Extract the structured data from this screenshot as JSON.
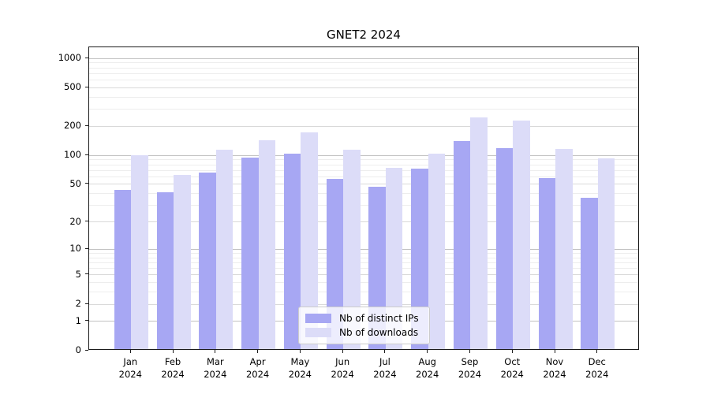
{
  "chart_data": {
    "type": "bar",
    "title": "GNET2 2024",
    "categories": [
      "Jan",
      "Feb",
      "Mar",
      "Apr",
      "May",
      "Jun",
      "Jul",
      "Aug",
      "Sep",
      "Oct",
      "Nov",
      "Dec"
    ],
    "x_year_line": "2024",
    "series": [
      {
        "name": "Nb of distinct IPs",
        "color": "#a7a7f3",
        "values": [
          42,
          40,
          64,
          92,
          100,
          55,
          45,
          70,
          135,
          115,
          56,
          35
        ]
      },
      {
        "name": "Nb of downloads",
        "color": "#dcdcf8",
        "values": [
          97,
          60,
          110,
          138,
          168,
          110,
          72,
          100,
          240,
          220,
          112,
          90
        ]
      }
    ],
    "yscale": "log1p",
    "ylim": [
      0,
      1300
    ],
    "yticks": [
      0,
      1,
      2,
      5,
      10,
      20,
      50,
      100,
      200,
      500,
      1000
    ],
    "grid": "on",
    "legend_position": "lower-center"
  },
  "colors": {
    "major_grid": "#c2c2c2",
    "labeled_minor_grid": "#d9d9d9",
    "minor_grid": "#ededed",
    "axis": "#1b1b1b",
    "text": "#000000"
  }
}
